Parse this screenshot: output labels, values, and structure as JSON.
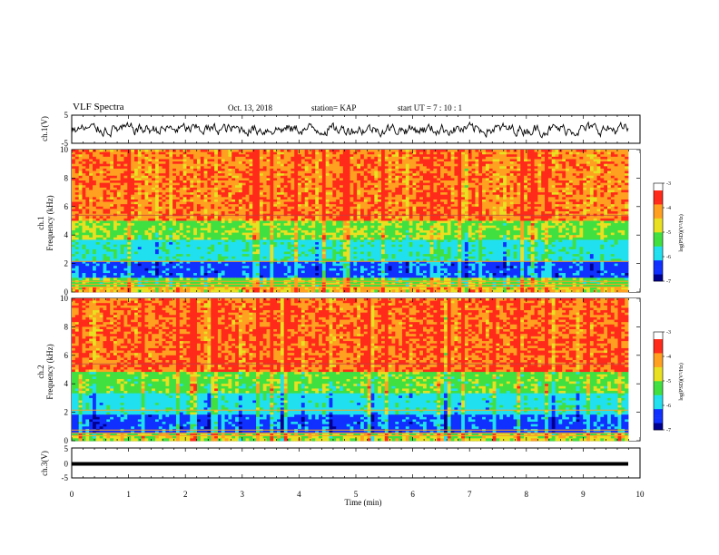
{
  "header": {
    "title": "VLF Spectra",
    "date": "Oct. 13, 2018",
    "station": "station= KAP",
    "start": "start  UT  =   7 : 10 : 1"
  },
  "chart_data": [
    {
      "type": "line",
      "panel": "ch1-waveform",
      "ylabel": "ch.1(V)",
      "ylim": [
        -5,
        5
      ],
      "yticks": [
        "5",
        "-5"
      ],
      "xlim": [
        0,
        10
      ],
      "description_of_signal": "noisy waveform roughly within -3..3 V"
    },
    {
      "type": "heatmap",
      "panel": "ch1-spectrogram",
      "ylabel": "ch.1\nFrequency (kHz)",
      "ylabel_lines": [
        "ch.1",
        "Frequency  (kHz)"
      ],
      "ylim": [
        0,
        10
      ],
      "yticks": [
        "0",
        "2",
        "4",
        "6",
        "8",
        "10"
      ],
      "xlim": [
        0,
        9.8
      ],
      "colorbar": {
        "label": "log(PSD)(V²/Hz)",
        "range": [
          -7,
          -3
        ],
        "ticks": [
          "-3",
          "-4",
          "-5",
          "-6",
          "-7"
        ]
      },
      "bands": [
        {
          "from": 0.0,
          "to": 0.4,
          "level": -4.0
        },
        {
          "from": 0.4,
          "to": 1.0,
          "level": -4.6
        },
        {
          "from": 1.0,
          "to": 2.1,
          "level": -6.0
        },
        {
          "from": 2.1,
          "to": 3.6,
          "level": -5.2
        },
        {
          "from": 3.6,
          "to": 5.0,
          "level": -4.5
        },
        {
          "from": 5.0,
          "to": 10.0,
          "level": -3.7
        }
      ]
    },
    {
      "type": "heatmap",
      "panel": "ch2-spectrogram",
      "ylabel_lines": [
        "ch.2",
        "Frequency  (kHz)"
      ],
      "ylim": [
        0,
        10
      ],
      "yticks": [
        "0",
        "2",
        "4",
        "6",
        "8",
        "10"
      ],
      "xlim": [
        0,
        9.8
      ],
      "colorbar": {
        "label": "log(PSD)(V²/Hz)",
        "range": [
          -7,
          -3
        ],
        "ticks": [
          "-3",
          "-4",
          "-5",
          "-6",
          "-7"
        ]
      },
      "bands": [
        {
          "from": 0.0,
          "to": 0.5,
          "level": -4.3
        },
        {
          "from": 0.5,
          "to": 1.8,
          "level": -6.0
        },
        {
          "from": 1.8,
          "to": 3.4,
          "level": -5.3
        },
        {
          "from": 3.4,
          "to": 4.8,
          "level": -4.6
        },
        {
          "from": 4.8,
          "to": 10.0,
          "level": -3.6
        }
      ]
    },
    {
      "type": "line",
      "panel": "ch3-waveform",
      "ylabel": "ch.3(V)",
      "ylim": [
        -5,
        5
      ],
      "yticks": [
        "5",
        "0",
        "-5"
      ],
      "series": [
        {
          "x": [
            0,
            9.8
          ],
          "y": [
            0,
            0
          ]
        }
      ]
    }
  ],
  "xaxis": {
    "label": "Time  (min)",
    "ticks": [
      "0",
      "1",
      "2",
      "3",
      "4",
      "5",
      "6",
      "7",
      "8",
      "9",
      "10"
    ]
  },
  "colors": {
    "red": "#ff2a1a",
    "orange": "#ffa020",
    "yellow": "#e8e020",
    "green": "#40e040",
    "cyan": "#20e0f0",
    "blue": "#1030ff",
    "navy": "#000090"
  }
}
